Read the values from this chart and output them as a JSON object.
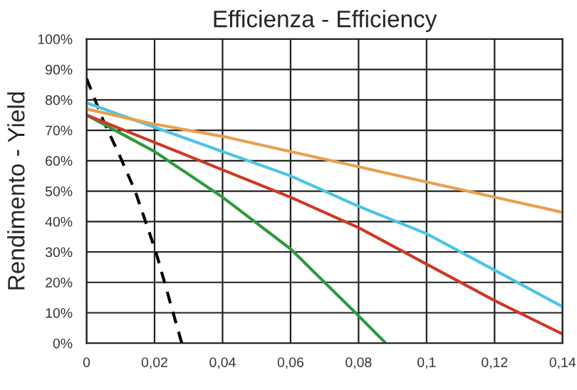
{
  "chart_data": {
    "type": "line",
    "title": "Efficienza - Efficiency",
    "ylabel": "Rendimento - Yield",
    "xlim": [
      0,
      0.14
    ],
    "ylim": [
      0,
      100
    ],
    "xticks": [
      0,
      {
        "value": 0.02,
        "label": "0,02"
      },
      {
        "value": 0.04,
        "label": "0,04"
      },
      {
        "value": 0.06,
        "label": "0,06"
      },
      {
        "value": 0.08,
        "label": "0,08"
      },
      {
        "value": 0.1,
        "label": "0,1"
      },
      {
        "value": 0.12,
        "label": "0,12"
      },
      {
        "value": 0.14,
        "label": "0,14"
      }
    ],
    "yticks": [
      {
        "value": 0,
        "label": "0%"
      },
      {
        "value": 10,
        "label": "10%"
      },
      {
        "value": 20,
        "label": "20%"
      },
      {
        "value": 30,
        "label": "30%"
      },
      {
        "value": 40,
        "label": "40%"
      },
      {
        "value": 50,
        "label": "50%"
      },
      {
        "value": 60,
        "label": "60%"
      },
      {
        "value": 70,
        "label": "70%"
      },
      {
        "value": 80,
        "label": "80%"
      },
      {
        "value": 90,
        "label": "90%"
      },
      {
        "value": 100,
        "label": "100%"
      }
    ],
    "grid": true,
    "marker": "none",
    "series": [
      {
        "color": "#000000",
        "line_style": "dashed",
        "x": [
          0,
          0.005,
          0.01,
          0.0143,
          0.0204,
          0.028
        ],
        "values": [
          87,
          73,
          61,
          50,
          30,
          0
        ]
      },
      {
        "color": "#2e9a3c",
        "line_style": "solid",
        "x": [
          0,
          0.02,
          0.04,
          0.06,
          0.08,
          0.088
        ],
        "values": [
          75,
          63,
          48,
          31,
          9,
          0
        ]
      },
      {
        "color": "#cc3a25",
        "line_style": "solid",
        "x": [
          0,
          0.02,
          0.04,
          0.06,
          0.08,
          0.1,
          0.12,
          0.14
        ],
        "values": [
          75,
          66,
          57,
          48,
          38,
          26,
          14,
          3
        ]
      },
      {
        "color": "#4cc4e4",
        "line_style": "solid",
        "x": [
          0,
          0.02,
          0.04,
          0.06,
          0.08,
          0.1,
          0.12,
          0.14
        ],
        "values": [
          79,
          71,
          63,
          55,
          45,
          36,
          24,
          12
        ]
      },
      {
        "color": "#e8a050",
        "line_style": "solid",
        "x": [
          0,
          0.02,
          0.04,
          0.06,
          0.08,
          0.1,
          0.12,
          0.14
        ],
        "values": [
          77,
          72,
          68,
          63,
          58,
          53,
          48,
          43
        ]
      }
    ]
  }
}
